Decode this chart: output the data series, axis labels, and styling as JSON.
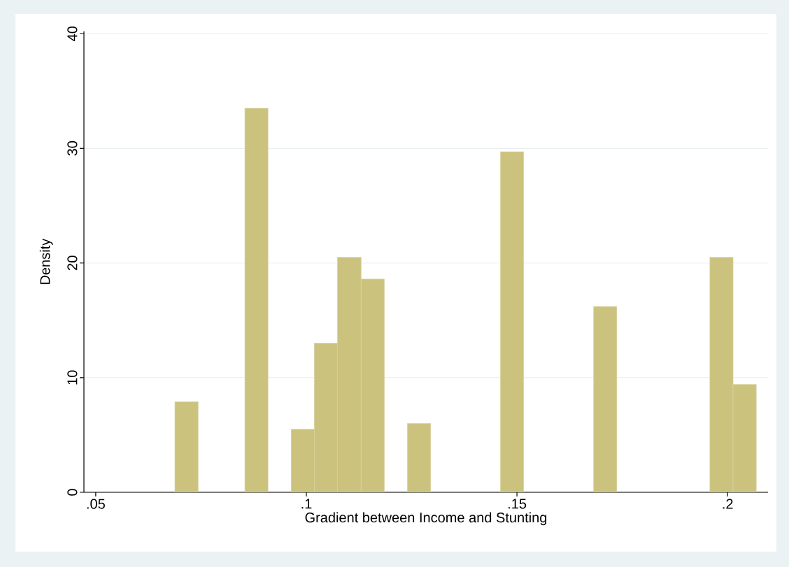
{
  "chart_data": {
    "type": "histogram",
    "xlabel": "Gradient between Income and Stunting",
    "ylabel": "Density",
    "bins": [
      0.0688,
      0.0743,
      0.0854,
      0.0909,
      0.0964,
      0.1019,
      0.1074,
      0.113,
      0.1185,
      0.124,
      0.1295,
      0.1461,
      0.1516,
      0.1682,
      0.1737,
      0.1958,
      0.2013,
      0.2068
    ],
    "values": [
      7.9,
      0,
      33.5,
      0,
      5.5,
      13,
      20.5,
      18.6,
      0,
      6,
      0,
      29.7,
      0,
      16.2,
      0,
      20.5,
      9.4
    ],
    "color": "#cbc27e",
    "xlim": [
      0.0472,
      0.2096
    ],
    "ylim": [
      0,
      40.2
    ],
    "xticks": [
      {
        "value": 0.05,
        "label": ".05"
      },
      {
        "value": 0.1,
        "label": ".1"
      },
      {
        "value": 0.15,
        "label": ".15"
      },
      {
        "value": 0.2,
        "label": ".2"
      }
    ],
    "yticks": [
      0,
      10,
      20,
      30,
      40
    ],
    "grid": "y"
  }
}
